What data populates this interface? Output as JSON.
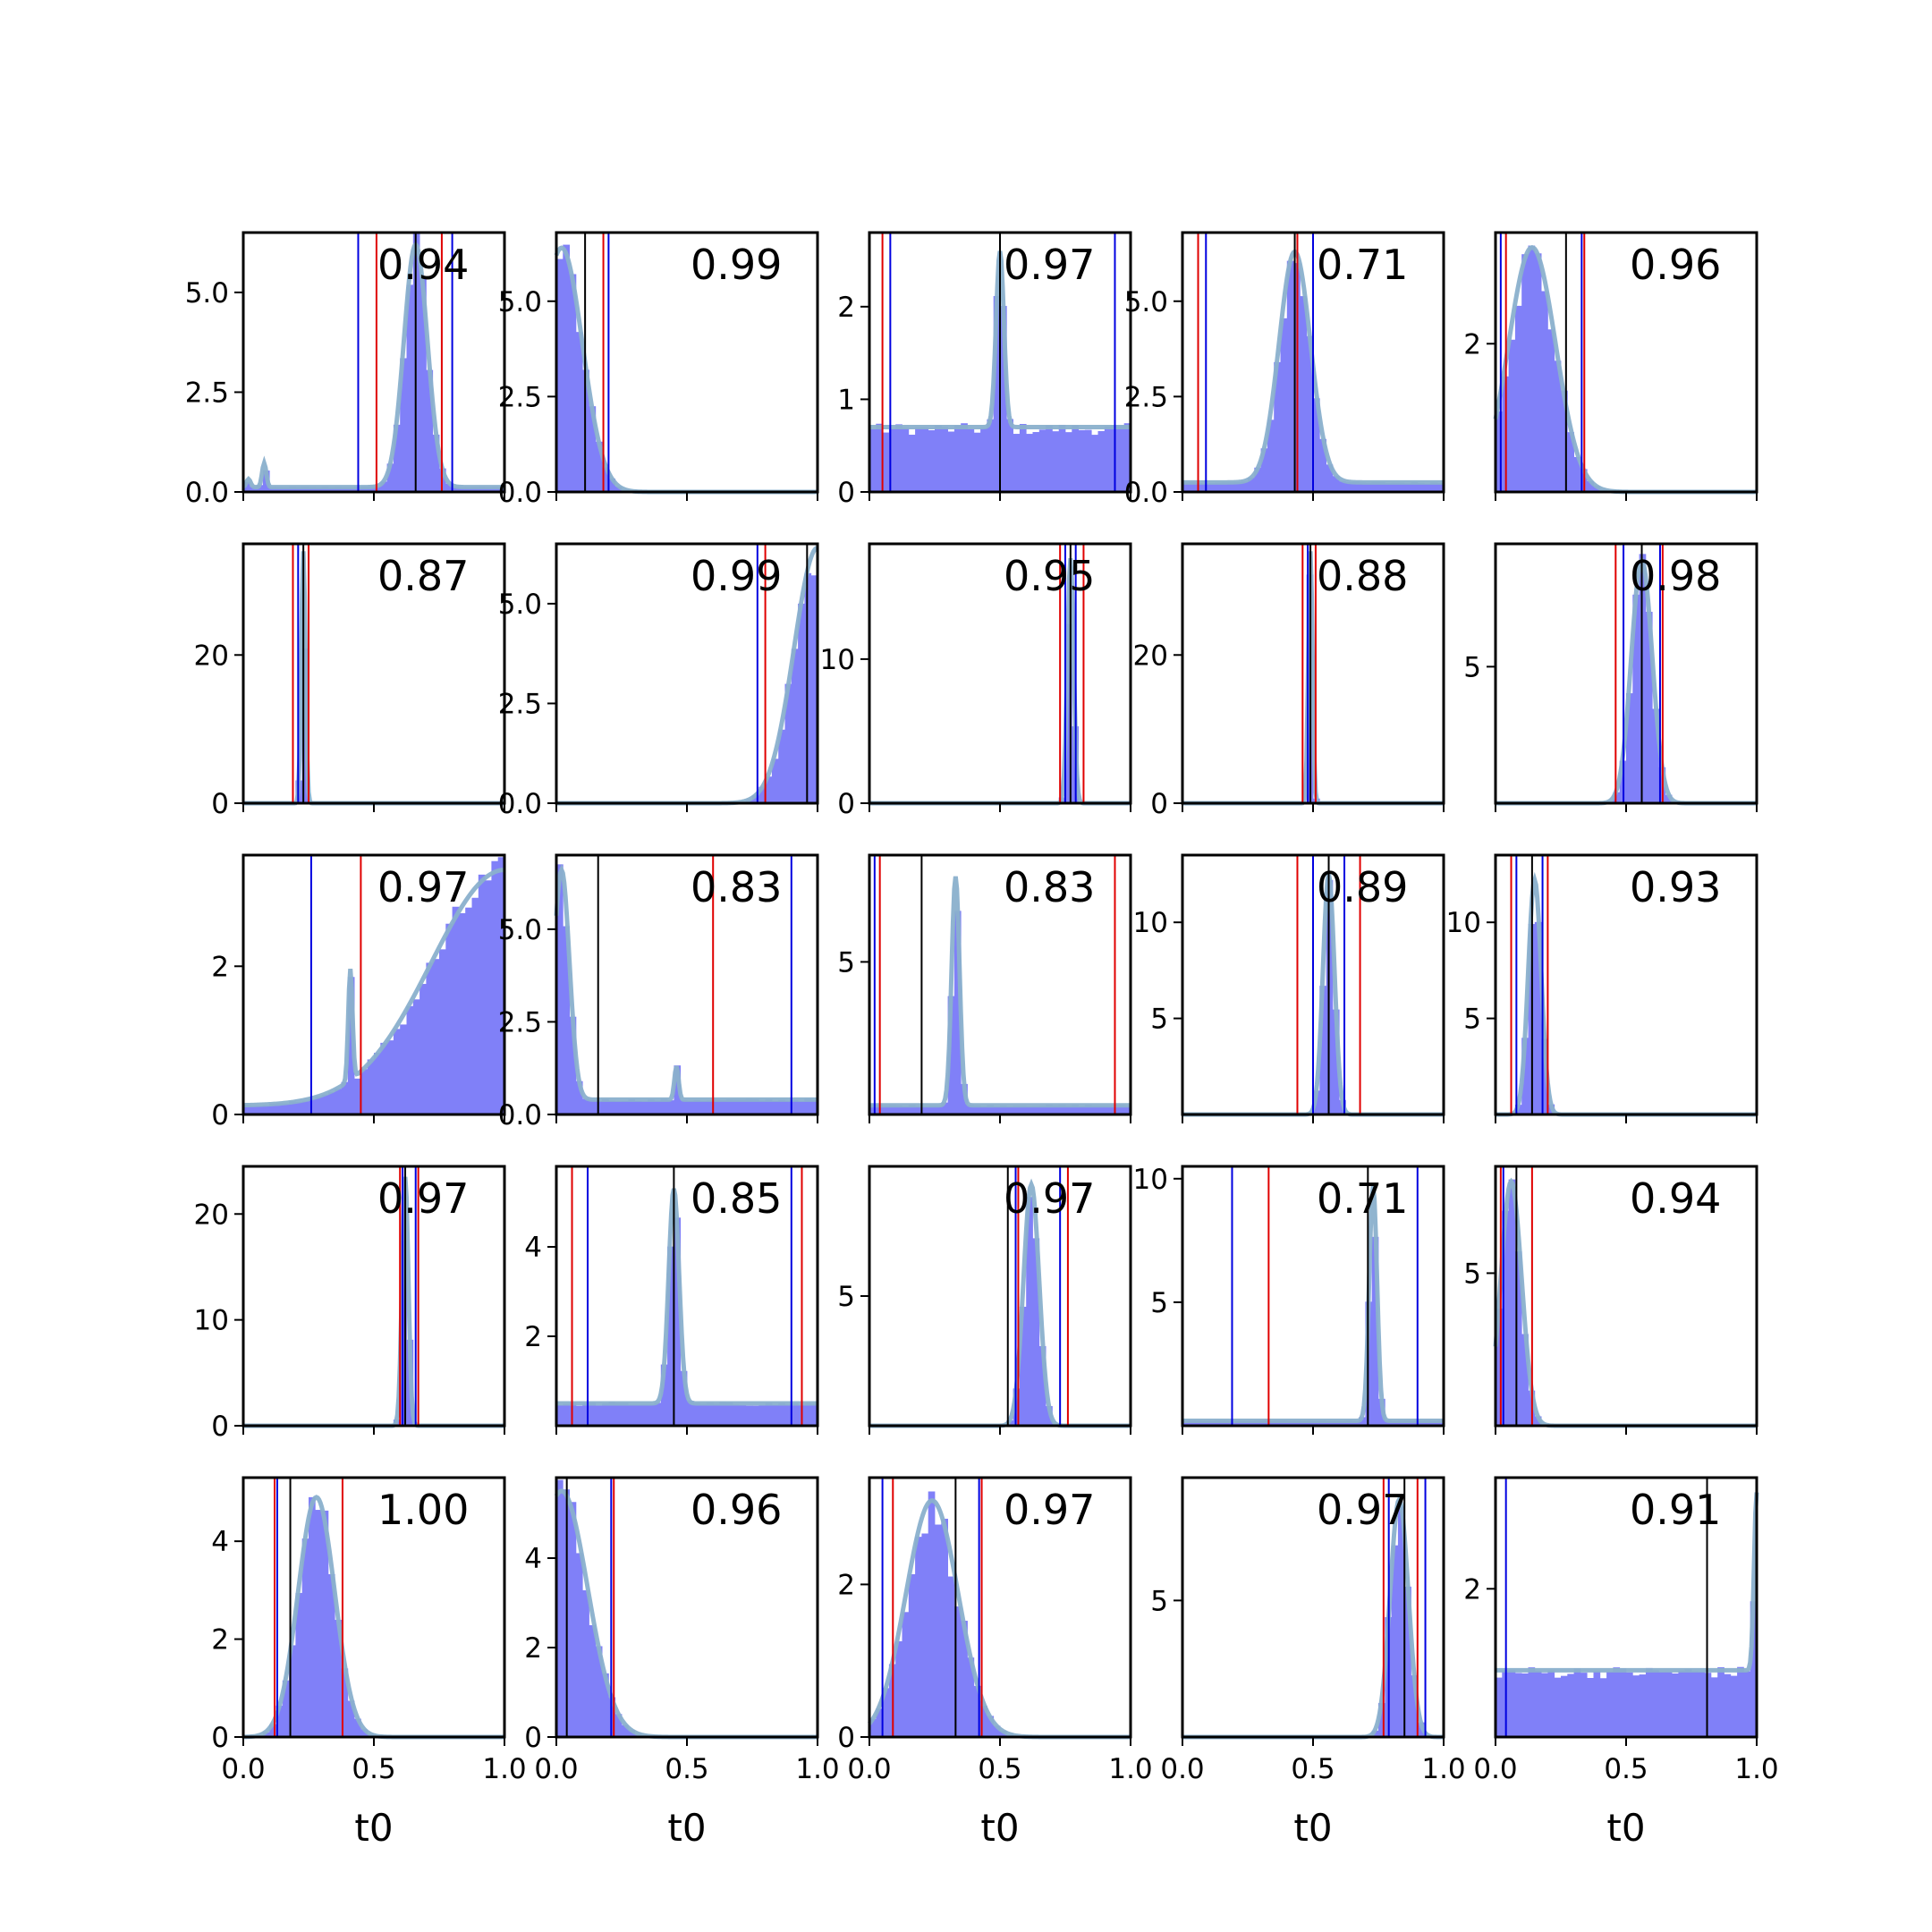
{
  "colors": {
    "hist_fill": "#8080f8",
    "kde_line": "#8ab0cc",
    "red_line": "#e00000",
    "blue_line": "#0000e0",
    "black_line": "#000000"
  },
  "chart_data": {
    "type": "histogram-grid",
    "rows": 5,
    "cols": 5,
    "xlabel": "t0",
    "xlim": [
      0,
      1
    ],
    "xticks": [
      0.0,
      0.5,
      1.0
    ],
    "xtick_labels": [
      "0.0",
      "0.5",
      "1.0"
    ],
    "panels": [
      {
        "score": "0.94",
        "ymax": 6.5,
        "yticks": [
          "0.0",
          "2.5",
          "5.0"
        ],
        "ytick_values": [
          0,
          2.5,
          5.0
        ],
        "mode": 0.66,
        "width": 0.045,
        "peak": 6.2,
        "base": 0.12,
        "red": [
          0.51,
          0.76
        ],
        "blue": [
          0.44,
          0.8
        ],
        "black": [
          0.66
        ],
        "extra_spikes": [
          [
            0.02,
            0.2
          ],
          [
            0.08,
            0.6
          ]
        ]
      },
      {
        "score": "0.99",
        "ymax": 6.8,
        "yticks": [
          "0.0",
          "2.5",
          "5.0"
        ],
        "ytick_values": [
          0,
          2.5,
          5.0
        ],
        "mode": 0.02,
        "width": 0.08,
        "peak": 6.4,
        "base": 0.0,
        "red": [
          0.18
        ],
        "blue": [
          0.2
        ],
        "black": [
          0.11
        ],
        "extra_spikes": []
      },
      {
        "score": "0.97",
        "ymax": 2.8,
        "yticks": [
          "0",
          "1",
          "2"
        ],
        "ytick_values": [
          0,
          1,
          2
        ],
        "mode": 0.5,
        "width": 0.015,
        "peak": 2.6,
        "base": 0.7,
        "red": [
          0.05,
          1.0
        ],
        "blue": [
          0.08,
          0.94
        ],
        "black": [
          0.5
        ],
        "extra_spikes": []
      },
      {
        "score": "0.71",
        "ymax": 6.8,
        "yticks": [
          "0.0",
          "2.5",
          "5.0"
        ],
        "ytick_values": [
          0,
          2.5,
          5.0
        ],
        "mode": 0.43,
        "width": 0.06,
        "peak": 6.3,
        "base": 0.25,
        "red": [
          0.06,
          0.44
        ],
        "blue": [
          0.09,
          0.5
        ],
        "black": [
          0.43
        ],
        "extra_spikes": []
      },
      {
        "score": "0.96",
        "ymax": 3.5,
        "yticks": [
          "2"
        ],
        "ytick_values": [
          2
        ],
        "mode": 0.14,
        "width": 0.09,
        "peak": 3.3,
        "base": 0.0,
        "red": [
          0.04,
          0.34
        ],
        "blue": [
          0.02,
          0.33
        ],
        "black": [
          0.27
        ],
        "extra_spikes": []
      },
      {
        "score": "0.87",
        "ymax": 35,
        "yticks": [
          "0",
          "20"
        ],
        "ytick_values": [
          0,
          20
        ],
        "mode": 0.23,
        "width": 0.008,
        "peak": 34,
        "base": 0.0,
        "red": [
          0.19,
          0.25
        ],
        "blue": [
          0.21
        ],
        "black": [
          0.23
        ],
        "extra_spikes": []
      },
      {
        "score": "0.99",
        "ymax": 6.5,
        "yticks": [
          "0.0",
          "2.5",
          "5.0"
        ],
        "ytick_values": [
          0,
          2.5,
          5.0
        ],
        "mode": 1.0,
        "width": 0.09,
        "peak": 6.4,
        "base": 0.0,
        "red": [
          0.8
        ],
        "blue": [
          0.77
        ],
        "black": [
          0.96
        ],
        "extra_spikes": []
      },
      {
        "score": "0.95",
        "ymax": 18,
        "yticks": [
          "0",
          "10"
        ],
        "ytick_values": [
          0,
          10
        ],
        "mode": 0.77,
        "width": 0.012,
        "peak": 17,
        "base": 0.0,
        "red": [
          0.73,
          0.82
        ],
        "blue": [
          0.75,
          0.79
        ],
        "black": [
          0.77
        ],
        "extra_spikes": []
      },
      {
        "score": "0.88",
        "ymax": 35,
        "yticks": [
          "0",
          "20"
        ],
        "ytick_values": [
          0,
          20
        ],
        "mode": 0.49,
        "width": 0.008,
        "peak": 34,
        "base": 0.0,
        "red": [
          0.46,
          0.51
        ],
        "blue": [
          0.48
        ],
        "black": [
          0.49
        ],
        "extra_spikes": []
      },
      {
        "score": "0.98",
        "ymax": 9.5,
        "yticks": [
          "5"
        ],
        "ytick_values": [
          5
        ],
        "mode": 0.56,
        "width": 0.04,
        "peak": 8.9,
        "base": 0.0,
        "red": [
          0.46,
          0.64
        ],
        "blue": [
          0.49,
          0.63
        ],
        "black": [
          0.56
        ],
        "extra_spikes": []
      },
      {
        "score": "0.97",
        "ymax": 3.5,
        "yticks": [
          "0",
          "2"
        ],
        "ytick_values": [
          0,
          2
        ],
        "mode": 1.0,
        "width": 0.28,
        "peak": 3.3,
        "base": 0.12,
        "red": [
          0.45
        ],
        "blue": [
          0.26
        ],
        "black": [
          1.0
        ],
        "extra_spikes": [
          [
            0.41,
            1.5
          ]
        ]
      },
      {
        "score": "0.83",
        "ymax": 7.0,
        "yticks": [
          "0.0",
          "2.5",
          "5.0"
        ],
        "ytick_values": [
          0,
          2.5,
          5.0
        ],
        "mode": 0.02,
        "width": 0.03,
        "peak": 6.6,
        "base": 0.4,
        "red": [
          0.6
        ],
        "blue": [
          0.9
        ],
        "black": [
          0.16
        ],
        "extra_spikes": [
          [
            0.46,
            0.9
          ]
        ]
      },
      {
        "score": "0.83",
        "ymax": 8.5,
        "yticks": [
          "5"
        ],
        "ytick_values": [
          5
        ],
        "mode": 0.33,
        "width": 0.015,
        "peak": 7.8,
        "base": 0.3,
        "red": [
          0.04,
          0.94
        ],
        "blue": [
          0.02
        ],
        "black": [
          0.2
        ],
        "extra_spikes": []
      },
      {
        "score": "0.89",
        "ymax": 13.5,
        "yticks": [
          "5",
          "10"
        ],
        "ytick_values": [
          5,
          10
        ],
        "mode": 0.56,
        "width": 0.022,
        "peak": 12.5,
        "base": 0.0,
        "red": [
          0.44,
          0.68
        ],
        "blue": [
          0.5,
          0.62
        ],
        "black": [
          0.56
        ],
        "extra_spikes": []
      },
      {
        "score": "0.93",
        "ymax": 13.5,
        "yticks": [
          "5",
          "10"
        ],
        "ytick_values": [
          5,
          10
        ],
        "mode": 0.15,
        "width": 0.025,
        "peak": 12.2,
        "base": 0.0,
        "red": [
          0.06,
          0.2
        ],
        "blue": [
          0.08,
          0.18
        ],
        "black": [
          0.14
        ],
        "extra_spikes": []
      },
      {
        "score": "0.97",
        "ymax": 24.5,
        "yticks": [
          "0",
          "10",
          "20"
        ],
        "ytick_values": [
          0,
          10,
          20
        ],
        "mode": 0.62,
        "width": 0.012,
        "peak": 23.5,
        "base": 0.0,
        "red": [
          0.6,
          0.67
        ],
        "blue": [
          0.61,
          0.66
        ],
        "black": [
          0.62
        ],
        "extra_spikes": []
      },
      {
        "score": "0.85",
        "ymax": 5.8,
        "yticks": [
          "2",
          "4"
        ],
        "ytick_values": [
          2,
          4
        ],
        "mode": 0.45,
        "width": 0.02,
        "peak": 5.3,
        "base": 0.5,
        "red": [
          0.06,
          0.94
        ],
        "blue": [
          0.12,
          0.9
        ],
        "black": [
          0.45
        ],
        "extra_spikes": []
      },
      {
        "score": "0.97",
        "ymax": 10.0,
        "yticks": [
          "5"
        ],
        "ytick_values": [
          5
        ],
        "mode": 0.62,
        "width": 0.03,
        "peak": 9.3,
        "base": 0.0,
        "red": [
          0.57,
          0.76
        ],
        "blue": [
          0.56,
          0.73
        ],
        "black": [
          0.53
        ],
        "extra_spikes": []
      },
      {
        "score": "0.71",
        "ymax": 10.5,
        "yticks": [
          "5",
          "10"
        ],
        "ytick_values": [
          5,
          10
        ],
        "mode": 0.73,
        "width": 0.015,
        "peak": 9.7,
        "base": 0.2,
        "red": [
          0.33,
          1.0
        ],
        "blue": [
          0.19,
          0.9
        ],
        "black": [
          0.71
        ],
        "extra_spikes": []
      },
      {
        "score": "0.94",
        "ymax": 8.5,
        "yticks": [
          "5"
        ],
        "ytick_values": [
          5
        ],
        "mode": 0.06,
        "width": 0.04,
        "peak": 8.0,
        "base": 0.0,
        "red": [
          0.02,
          0.14
        ],
        "blue": [
          0.03
        ],
        "black": [
          0.08
        ],
        "extra_spikes": []
      },
      {
        "score": "1.00",
        "ymax": 5.3,
        "yticks": [
          "0",
          "2",
          "4"
        ],
        "ytick_values": [
          0,
          2,
          4
        ],
        "mode": 0.28,
        "width": 0.07,
        "peak": 4.9,
        "base": 0.0,
        "red": [
          0.12,
          0.38
        ],
        "blue": [
          0.13
        ],
        "black": [
          0.18
        ],
        "extra_spikes": []
      },
      {
        "score": "0.96",
        "ymax": 5.8,
        "yticks": [
          "0",
          "2",
          "4"
        ],
        "ytick_values": [
          0,
          2,
          4
        ],
        "mode": 0.02,
        "width": 0.1,
        "peak": 5.5,
        "base": 0.0,
        "red": [
          0.22
        ],
        "blue": [
          0.21
        ],
        "black": [
          0.04
        ],
        "extra_spikes": []
      },
      {
        "score": "0.97",
        "ymax": 3.4,
        "yticks": [
          "0",
          "2"
        ],
        "ytick_values": [
          0,
          2
        ],
        "mode": 0.24,
        "width": 0.1,
        "peak": 3.1,
        "base": 0.0,
        "red": [
          0.09,
          0.43
        ],
        "blue": [
          0.05,
          0.42
        ],
        "black": [
          0.33
        ],
        "extra_spikes": []
      },
      {
        "score": "0.97",
        "ymax": 9.5,
        "yticks": [
          "5"
        ],
        "ytick_values": [
          5
        ],
        "mode": 0.83,
        "width": 0.035,
        "peak": 8.7,
        "base": 0.0,
        "red": [
          0.77,
          0.9
        ],
        "blue": [
          0.79,
          0.93
        ],
        "black": [
          0.85
        ],
        "extra_spikes": []
      },
      {
        "score": "0.91",
        "ymax": 3.5,
        "yticks": [
          "2"
        ],
        "ytick_values": [
          2
        ],
        "mode": 1.0,
        "width": 0.01,
        "peak": 3.3,
        "base": 0.9,
        "red": [
          1.0
        ],
        "blue": [
          0.04,
          1.0
        ],
        "black": [
          0.81
        ],
        "extra_spikes": []
      }
    ]
  }
}
